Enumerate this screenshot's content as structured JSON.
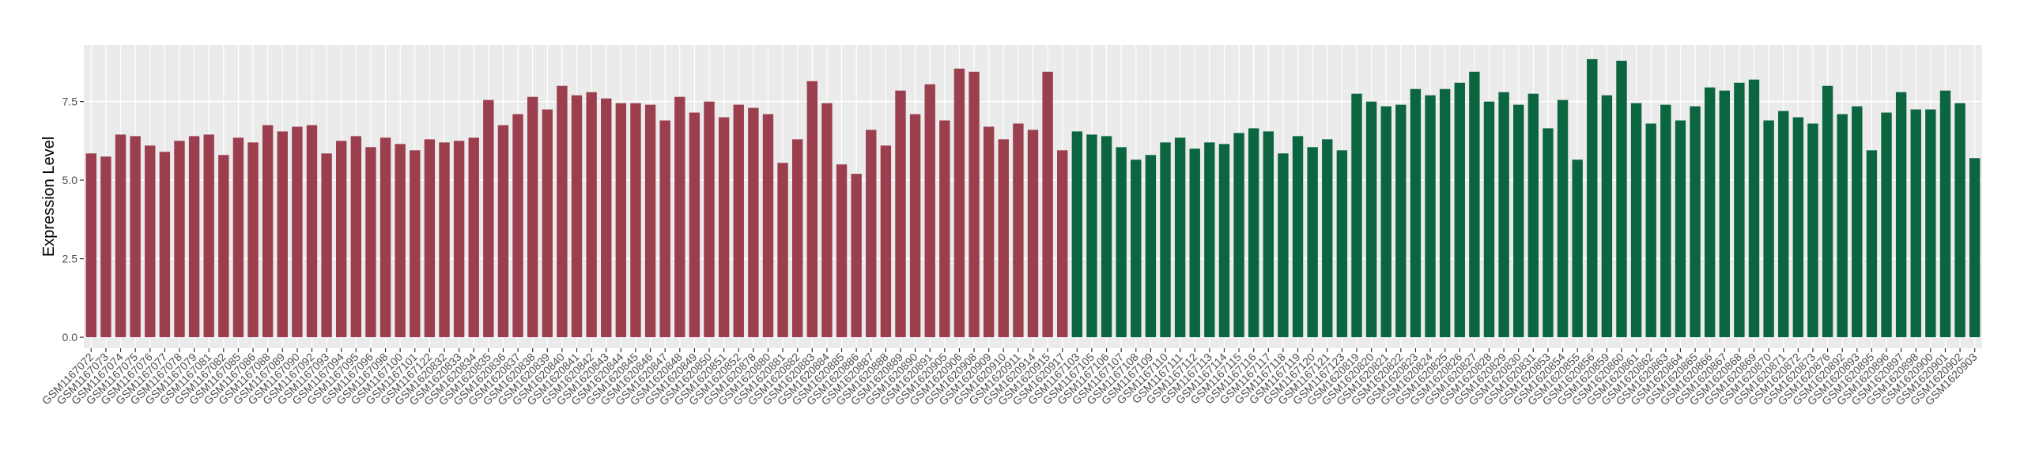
{
  "chart_data": {
    "type": "bar",
    "y_label": "Expression Level",
    "categories": [
      "GSM1167072",
      "GSM1167073",
      "GSM1167074",
      "GSM1167075",
      "GSM1167076",
      "GSM1167077",
      "GSM1167078",
      "GSM1167079",
      "GSM1167081",
      "GSM1167082",
      "GSM1167085",
      "GSM1167086",
      "GSM1167088",
      "GSM1167089",
      "GSM1167090",
      "GSM1167092",
      "GSM1167093",
      "GSM1167094",
      "GSM1167095",
      "GSM1167096",
      "GSM1167098",
      "GSM1167100",
      "GSM1167101",
      "GSM1167122",
      "GSM1620832",
      "GSM1620833",
      "GSM1620834",
      "GSM1620835",
      "GSM1620836",
      "GSM1620837",
      "GSM1620838",
      "GSM1620839",
      "GSM1620840",
      "GSM1620841",
      "GSM1620842",
      "GSM1620843",
      "GSM1620844",
      "GSM1620845",
      "GSM1620846",
      "GSM1620847",
      "GSM1620848",
      "GSM1620849",
      "GSM1620850",
      "GSM1620851",
      "GSM1620852",
      "GSM1620878",
      "GSM1620880",
      "GSM1620881",
      "GSM1620882",
      "GSM1620883",
      "GSM1620884",
      "GSM1620885",
      "GSM1620886",
      "GSM1620887",
      "GSM1620888",
      "GSM1620889",
      "GSM1620890",
      "GSM1620891",
      "GSM1620905",
      "GSM1620906",
      "GSM1620908",
      "GSM1620909",
      "GSM1620910",
      "GSM1620911",
      "GSM1620914",
      "GSM1620915",
      "GSM1620917",
      "GSM1167103",
      "GSM1167105",
      "GSM1167106",
      "GSM1167107",
      "GSM1167108",
      "GSM1167109",
      "GSM1167110",
      "GSM1167111",
      "GSM1167112",
      "GSM1167113",
      "GSM1167114",
      "GSM1167115",
      "GSM1167116",
      "GSM1167117",
      "GSM1167118",
      "GSM1167119",
      "GSM1167120",
      "GSM1167121",
      "GSM1167123",
      "GSM1620819",
      "GSM1620820",
      "GSM1620821",
      "GSM1620822",
      "GSM1620823",
      "GSM1620824",
      "GSM1620825",
      "GSM1620826",
      "GSM1620827",
      "GSM1620828",
      "GSM1620829",
      "GSM1620830",
      "GSM1620831",
      "GSM1620853",
      "GSM1620854",
      "GSM1620855",
      "GSM1620856",
      "GSM1620859",
      "GSM1620860",
      "GSM1620861",
      "GSM1620862",
      "GSM1620863",
      "GSM1620864",
      "GSM1620865",
      "GSM1620866",
      "GSM1620867",
      "GSM1620868",
      "GSM1620869",
      "GSM1620870",
      "GSM1620871",
      "GSM1620872",
      "GSM1620873",
      "GSM1620876",
      "GSM1620892",
      "GSM1620893",
      "GSM1620895",
      "GSM1620896",
      "GSM1620897",
      "GSM1620898",
      "GSM1620900",
      "GSM1620901",
      "GSM1620902",
      "GSM1620903"
    ],
    "values": [
      5.85,
      5.75,
      6.45,
      6.4,
      6.1,
      5.9,
      6.25,
      6.4,
      6.45,
      5.8,
      6.35,
      6.2,
      6.75,
      6.55,
      6.7,
      6.75,
      5.85,
      6.25,
      6.4,
      6.05,
      6.35,
      6.15,
      5.95,
      6.3,
      6.2,
      6.25,
      6.35,
      7.55,
      6.75,
      7.1,
      7.65,
      7.25,
      8.0,
      7.7,
      7.8,
      7.6,
      7.45,
      7.45,
      7.4,
      6.9,
      7.65,
      7.15,
      7.5,
      7.0,
      7.4,
      7.3,
      7.1,
      5.55,
      6.3,
      8.15,
      7.45,
      5.5,
      5.2,
      6.6,
      6.1,
      7.85,
      7.1,
      8.05,
      6.9,
      8.55,
      8.45,
      6.7,
      6.3,
      6.8,
      6.6,
      8.45,
      5.95,
      6.55,
      6.45,
      6.4,
      6.05,
      5.65,
      5.8,
      6.2,
      6.35,
      6.0,
      6.2,
      6.15,
      6.5,
      6.65,
      6.55,
      5.85,
      6.4,
      6.05,
      6.3,
      5.95,
      7.75,
      7.5,
      7.35,
      7.4,
      7.9,
      7.7,
      7.9,
      8.1,
      8.45,
      7.5,
      7.8,
      7.4,
      7.75,
      6.65,
      7.55,
      5.65,
      8.85,
      7.7,
      8.8,
      7.45,
      6.8,
      7.4,
      6.9,
      7.35,
      7.95,
      7.85,
      8.1,
      8.2,
      6.9,
      7.2,
      7.0,
      6.8,
      8.0,
      7.1,
      7.35,
      5.95,
      7.15,
      7.8,
      7.25,
      7.25,
      7.85,
      7.45,
      5.7
    ],
    "colors": [
      "#9b3f4f",
      "#9b3f4f",
      "#9b3f4f",
      "#9b3f4f",
      "#9b3f4f",
      "#9b3f4f",
      "#9b3f4f",
      "#9b3f4f",
      "#9b3f4f",
      "#9b3f4f",
      "#9b3f4f",
      "#9b3f4f",
      "#9b3f4f",
      "#9b3f4f",
      "#9b3f4f",
      "#9b3f4f",
      "#9b3f4f",
      "#9b3f4f",
      "#9b3f4f",
      "#9b3f4f",
      "#9b3f4f",
      "#9b3f4f",
      "#9b3f4f",
      "#9b3f4f",
      "#9b3f4f",
      "#9b3f4f",
      "#9b3f4f",
      "#9b3f4f",
      "#9b3f4f",
      "#9b3f4f",
      "#9b3f4f",
      "#9b3f4f",
      "#9b3f4f",
      "#9b3f4f",
      "#9b3f4f",
      "#9b3f4f",
      "#9b3f4f",
      "#9b3f4f",
      "#9b3f4f",
      "#9b3f4f",
      "#9b3f4f",
      "#9b3f4f",
      "#9b3f4f",
      "#9b3f4f",
      "#9b3f4f",
      "#9b3f4f",
      "#9b3f4f",
      "#9b3f4f",
      "#9b3f4f",
      "#9b3f4f",
      "#9b3f4f",
      "#9b3f4f",
      "#9b3f4f",
      "#9b3f4f",
      "#9b3f4f",
      "#9b3f4f",
      "#9b3f4f",
      "#9b3f4f",
      "#9b3f4f",
      "#9b3f4f",
      "#9b3f4f",
      "#9b3f4f",
      "#9b3f4f",
      "#9b3f4f",
      "#9b3f4f",
      "#9b3f4f",
      "#9b3f4f",
      "#0b6640",
      "#0b6640",
      "#0b6640",
      "#0b6640",
      "#0b6640",
      "#0b6640",
      "#0b6640",
      "#0b6640",
      "#0b6640",
      "#0b6640",
      "#0b6640",
      "#0b6640",
      "#0b6640",
      "#0b6640",
      "#0b6640",
      "#0b6640",
      "#0b6640",
      "#0b6640",
      "#0b6640",
      "#0b6640",
      "#0b6640",
      "#0b6640",
      "#0b6640",
      "#0b6640",
      "#0b6640",
      "#0b6640",
      "#0b6640",
      "#0b6640",
      "#0b6640",
      "#0b6640",
      "#0b6640",
      "#0b6640",
      "#0b6640",
      "#0b6640",
      "#0b6640",
      "#0b6640",
      "#0b6640",
      "#0b6640",
      "#0b6640",
      "#0b6640",
      "#0b6640",
      "#0b6640",
      "#0b6640",
      "#0b6640",
      "#0b6640",
      "#0b6640",
      "#0b6640",
      "#0b6640",
      "#0b6640",
      "#0b6640",
      "#0b6640",
      "#0b6640",
      "#0b6640",
      "#0b6640",
      "#0b6640",
      "#0b6640",
      "#0b6640",
      "#0b6640",
      "#0b6640",
      "#0b6640",
      "#0b6640",
      "#0b6640"
    ],
    "ylim": [
      -0.35,
      9.3
    ],
    "yticks": [
      {
        "value": 0,
        "label": "0.0"
      },
      2.5,
      {
        "value": 5,
        "label": "5.0"
      },
      7.5
    ],
    "grid": true
  }
}
